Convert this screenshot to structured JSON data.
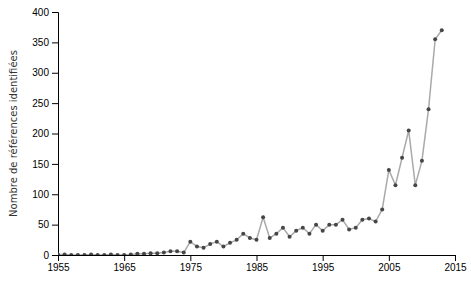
{
  "chart_data": {
    "type": "line",
    "x": [
      1955,
      1956,
      1957,
      1958,
      1959,
      1960,
      1961,
      1962,
      1963,
      1964,
      1965,
      1966,
      1967,
      1968,
      1969,
      1970,
      1971,
      1972,
      1973,
      1974,
      1975,
      1976,
      1977,
      1978,
      1979,
      1980,
      1981,
      1982,
      1983,
      1984,
      1985,
      1986,
      1987,
      1988,
      1989,
      1990,
      1991,
      1992,
      1993,
      1994,
      1995,
      1996,
      1997,
      1998,
      1999,
      2000,
      2001,
      2002,
      2003,
      2004,
      2005,
      2006,
      2007,
      2008,
      2009,
      2010,
      2011,
      2012,
      2013
    ],
    "values": [
      1,
      1,
      0,
      0,
      0,
      1,
      0,
      0,
      1,
      0,
      0,
      1,
      2,
      2,
      3,
      3,
      4,
      6,
      6,
      4,
      22,
      14,
      12,
      18,
      22,
      14,
      20,
      25,
      35,
      28,
      25,
      62,
      28,
      35,
      45,
      30,
      40,
      45,
      35,
      50,
      40,
      50,
      50,
      58,
      42,
      45,
      58,
      60,
      55,
      75,
      140,
      115,
      160,
      205,
      115,
      155,
      240,
      355,
      370
    ],
    "ylabel": "Nombre de références identifiées",
    "xlim": [
      1955,
      2015
    ],
    "ylim": [
      0,
      400
    ],
    "yticks": [
      0,
      50,
      100,
      150,
      200,
      250,
      300,
      350,
      400
    ],
    "xticks": [
      1955,
      1965,
      1975,
      1985,
      1995,
      2005,
      2015
    ],
    "color": "#aaaaaa",
    "marker": "dot",
    "grid": false
  }
}
